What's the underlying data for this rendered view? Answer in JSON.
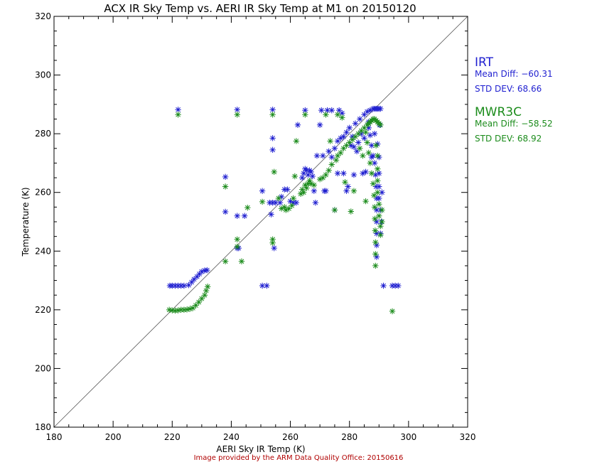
{
  "chart_data": {
    "type": "scatter",
    "title": "ACX IR Sky Temp vs. AERI IR Sky Temp at M1 on 20150120",
    "xlabel": "AERI Sky IR Temp (K)",
    "ylabel": "Temperature (K)",
    "xlim": [
      180,
      320
    ],
    "ylim": [
      180,
      320
    ],
    "xticks": [
      180,
      200,
      220,
      240,
      260,
      280,
      300,
      320
    ],
    "yticks": [
      180,
      200,
      220,
      240,
      260,
      280,
      300,
      320
    ],
    "x_tick_labels": [
      "180",
      "200",
      "220",
      "240",
      "260",
      "280",
      "300",
      "320"
    ],
    "y_tick_labels": [
      "180",
      "200",
      "220",
      "240",
      "260",
      "280",
      "300",
      "320"
    ],
    "reference_line": "1:1",
    "grid": false,
    "marker": "asterisk",
    "series": [
      {
        "name": "IRT",
        "color": "#1f1fd0",
        "points": [
          [
            219.2,
            228.2
          ],
          [
            220.0,
            228.2
          ],
          [
            221.0,
            228.2
          ],
          [
            222.0,
            228.2
          ],
          [
            223.0,
            228.2
          ],
          [
            224.0,
            228.2
          ],
          [
            225.6,
            228.4
          ],
          [
            226.6,
            229.4
          ],
          [
            227.4,
            230.4
          ],
          [
            228.4,
            231.3
          ],
          [
            229.2,
            232.2
          ],
          [
            230.0,
            233.0
          ],
          [
            231.0,
            233.4
          ],
          [
            231.8,
            233.5
          ],
          [
            222.0,
            288.2
          ],
          [
            242.0,
            288.2
          ],
          [
            254.0,
            288.2
          ],
          [
            265.0,
            288.0
          ],
          [
            270.5,
            288.0
          ],
          [
            272.5,
            288.0
          ],
          [
            274.0,
            288.0
          ],
          [
            276.5,
            288.0
          ],
          [
            277.5,
            287.0
          ],
          [
            238.0,
            265.3
          ],
          [
            238.0,
            253.4
          ],
          [
            242.0,
            252.0
          ],
          [
            244.5,
            252.0
          ],
          [
            242.0,
            241.0
          ],
          [
            242.5,
            241.0
          ],
          [
            254.5,
            241.0
          ],
          [
            250.5,
            228.2
          ],
          [
            252.0,
            228.2
          ],
          [
            250.5,
            260.5
          ],
          [
            253.0,
            256.5
          ],
          [
            254.0,
            256.5
          ],
          [
            255.0,
            256.5
          ],
          [
            256.5,
            256.5
          ],
          [
            253.5,
            252.5
          ],
          [
            254.0,
            278.5
          ],
          [
            254.0,
            274.5
          ],
          [
            257.0,
            258.5
          ],
          [
            258.0,
            261.0
          ],
          [
            259.0,
            261.0
          ],
          [
            260.0,
            257.0
          ],
          [
            261.0,
            256.5
          ],
          [
            262.0,
            256.5
          ],
          [
            262.5,
            283.0
          ],
          [
            264.0,
            265.0
          ],
          [
            264.5,
            266.5
          ],
          [
            265.0,
            268.0
          ],
          [
            265.5,
            267.5
          ],
          [
            266.0,
            266.0
          ],
          [
            266.5,
            267.5
          ],
          [
            267.0,
            267.0
          ],
          [
            267.5,
            265.5
          ],
          [
            268.0,
            260.5
          ],
          [
            268.5,
            256.5
          ],
          [
            269.0,
            272.5
          ],
          [
            270.0,
            283.0
          ],
          [
            271.0,
            272.5
          ],
          [
            271.5,
            260.5
          ],
          [
            272.0,
            260.5
          ],
          [
            273.0,
            274.0
          ],
          [
            274.0,
            272.0
          ],
          [
            275.0,
            275.0
          ],
          [
            275.0,
            254.0
          ],
          [
            276.0,
            277.5
          ],
          [
            277.0,
            278.5
          ],
          [
            278.0,
            279.0
          ],
          [
            278.0,
            266.5
          ],
          [
            279.0,
            280.5
          ],
          [
            279.0,
            260.5
          ],
          [
            280.0,
            282.0
          ],
          [
            280.5,
            276.0
          ],
          [
            281.0,
            279.0
          ],
          [
            281.5,
            266.0
          ],
          [
            282.0,
            283.5
          ],
          [
            282.5,
            274.0
          ],
          [
            283.0,
            277.0
          ],
          [
            283.5,
            285.0
          ],
          [
            284.0,
            280.0
          ],
          [
            284.5,
            266.5
          ],
          [
            285.0,
            286.5
          ],
          [
            285.5,
            267.0
          ],
          [
            286.0,
            287.5
          ],
          [
            286.5,
            282.0
          ],
          [
            287.0,
            288.0
          ],
          [
            287.5,
            272.0
          ],
          [
            288.0,
            288.5
          ],
          [
            288.5,
            288.5
          ],
          [
            289.0,
            288.5
          ],
          [
            289.5,
            288.5
          ],
          [
            290.0,
            288.5
          ],
          [
            290.5,
            288.5
          ],
          [
            286.5,
            284.0
          ],
          [
            287.0,
            279.5
          ],
          [
            287.5,
            276.0
          ],
          [
            288.0,
            272.5
          ],
          [
            288.5,
            270.0
          ],
          [
            288.8,
            266.0
          ],
          [
            289.0,
            262.0
          ],
          [
            289.2,
            258.0
          ],
          [
            289.2,
            254.0
          ],
          [
            289.2,
            250.0
          ],
          [
            289.2,
            246.0
          ],
          [
            289.2,
            242.0
          ],
          [
            289.2,
            238.0
          ],
          [
            290.0,
            266.5
          ],
          [
            290.0,
            262.0
          ],
          [
            290.0,
            258.0
          ],
          [
            290.5,
            254.0
          ],
          [
            290.8,
            250.0
          ],
          [
            290.5,
            246.0
          ],
          [
            291.0,
            260.0
          ],
          [
            285.0,
            278.5
          ],
          [
            281.5,
            275.5
          ],
          [
            279.5,
            262.0
          ],
          [
            276.0,
            266.5
          ],
          [
            288.5,
            280.0
          ],
          [
            289.5,
            276.5
          ],
          [
            290.0,
            272.0
          ],
          [
            290.2,
            283.0
          ],
          [
            291.5,
            228.2
          ],
          [
            294.5,
            228.2
          ],
          [
            295.5,
            228.2
          ],
          [
            296.5,
            228.2
          ]
        ]
      },
      {
        "name": "MWR3C",
        "color": "#1c8c1c",
        "points": [
          [
            219.0,
            220.0
          ],
          [
            220.0,
            219.8
          ],
          [
            221.0,
            219.7
          ],
          [
            222.0,
            219.8
          ],
          [
            223.0,
            220.0
          ],
          [
            224.0,
            220.0
          ],
          [
            225.0,
            220.1
          ],
          [
            226.0,
            220.3
          ],
          [
            227.0,
            220.6
          ],
          [
            228.0,
            221.5
          ],
          [
            229.0,
            222.6
          ],
          [
            230.0,
            223.8
          ],
          [
            231.0,
            225.0
          ],
          [
            231.5,
            226.5
          ],
          [
            232.0,
            227.9
          ],
          [
            222.0,
            286.5
          ],
          [
            242.0,
            286.5
          ],
          [
            254.0,
            286.5
          ],
          [
            265.0,
            286.5
          ],
          [
            272.0,
            286.5
          ],
          [
            276.0,
            286.5
          ],
          [
            277.5,
            285.5
          ],
          [
            238.0,
            262.0
          ],
          [
            238.0,
            236.5
          ],
          [
            242.0,
            241.5
          ],
          [
            242.0,
            244.0
          ],
          [
            243.5,
            236.5
          ],
          [
            245.5,
            254.8
          ],
          [
            250.5,
            256.8
          ],
          [
            254.0,
            244.0
          ],
          [
            254.0,
            242.8
          ],
          [
            254.5,
            267.0
          ],
          [
            256.0,
            258.0
          ],
          [
            257.0,
            254.5
          ],
          [
            258.0,
            255.0
          ],
          [
            258.5,
            254.0
          ],
          [
            259.5,
            254.5
          ],
          [
            260.5,
            255.5
          ],
          [
            261.0,
            258.0
          ],
          [
            261.5,
            265.5
          ],
          [
            262.0,
            277.5
          ],
          [
            263.5,
            259.5
          ],
          [
            264.0,
            261.0
          ],
          [
            264.5,
            260.0
          ],
          [
            265.0,
            262.5
          ],
          [
            265.5,
            261.5
          ],
          [
            266.0,
            263.0
          ],
          [
            266.5,
            264.0
          ],
          [
            267.0,
            263.0
          ],
          [
            268.0,
            262.5
          ],
          [
            270.0,
            264.5
          ],
          [
            271.0,
            265.0
          ],
          [
            272.0,
            266.0
          ],
          [
            273.0,
            267.5
          ],
          [
            273.5,
            277.5
          ],
          [
            274.0,
            269.5
          ],
          [
            275.0,
            254.0
          ],
          [
            275.5,
            271.0
          ],
          [
            276.0,
            272.5
          ],
          [
            277.0,
            273.5
          ],
          [
            278.0,
            275.0
          ],
          [
            278.5,
            263.5
          ],
          [
            279.0,
            276.0
          ],
          [
            280.0,
            277.0
          ],
          [
            280.5,
            253.5
          ],
          [
            281.0,
            278.0
          ],
          [
            281.5,
            260.5
          ],
          [
            282.0,
            279.0
          ],
          [
            283.0,
            280.0
          ],
          [
            283.5,
            275.0
          ],
          [
            284.0,
            281.0
          ],
          [
            284.5,
            272.5
          ],
          [
            285.0,
            282.0
          ],
          [
            285.5,
            257.0
          ],
          [
            286.0,
            283.0
          ],
          [
            286.5,
            283.5
          ],
          [
            287.0,
            284.0
          ],
          [
            287.5,
            284.5
          ],
          [
            288.0,
            285.0
          ],
          [
            288.5,
            285.0
          ],
          [
            289.0,
            284.5
          ],
          [
            289.5,
            284.0
          ],
          [
            290.0,
            283.5
          ],
          [
            290.5,
            283.0
          ],
          [
            285.5,
            280.5
          ],
          [
            286.0,
            277.0
          ],
          [
            286.5,
            273.5
          ],
          [
            287.0,
            270.0
          ],
          [
            287.5,
            266.5
          ],
          [
            288.0,
            263.0
          ],
          [
            288.3,
            259.0
          ],
          [
            288.5,
            255.0
          ],
          [
            288.6,
            251.0
          ],
          [
            288.7,
            247.0
          ],
          [
            288.8,
            243.0
          ],
          [
            288.8,
            239.0
          ],
          [
            288.8,
            235.0
          ],
          [
            289.5,
            268.0
          ],
          [
            289.5,
            264.0
          ],
          [
            289.5,
            260.0
          ],
          [
            290.0,
            256.0
          ],
          [
            290.0,
            252.0
          ],
          [
            290.5,
            248.5
          ],
          [
            290.5,
            245.5
          ],
          [
            291.0,
            250.0
          ],
          [
            291.0,
            254.0
          ],
          [
            289.0,
            276.0
          ],
          [
            289.5,
            272.5
          ],
          [
            294.5,
            219.5
          ]
        ]
      }
    ],
    "legend": [
      {
        "name": "IRT",
        "color": "#1f1fd0",
        "lines": [
          "Mean Diff:  −60.31",
          "STD DEV:  68.66"
        ]
      },
      {
        "name": "MWR3C",
        "color": "#1c8c1c",
        "lines": [
          "Mean Diff:  −58.52",
          "STD DEV:  68.92"
        ]
      }
    ],
    "legend_position": "right"
  },
  "credit": {
    "text": "Image provided by the ARM Data Quality Office: 20150616",
    "color": "#b00000"
  }
}
